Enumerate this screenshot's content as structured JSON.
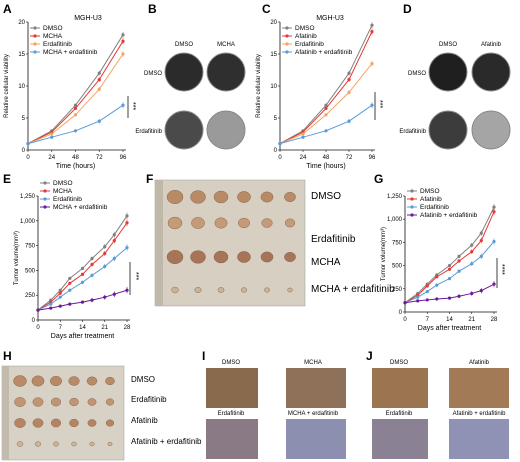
{
  "panels": {
    "A": {
      "letter": "A",
      "title": "MGH-U3",
      "xlabel": "Time (hours)",
      "ylabel": "Relative cellular viability",
      "sig": "***"
    },
    "B": {
      "letter": "B",
      "cols": [
        "DMSO",
        "MCHA"
      ],
      "rows": [
        "DMSO",
        "Erdafitinib"
      ]
    },
    "C": {
      "letter": "C",
      "title": "MGH-U3",
      "xlabel": "Time (hours)",
      "ylabel": "Relative cellular viability",
      "sig": "***"
    },
    "D": {
      "letter": "D",
      "cols": [
        "DMSO",
        "Afatinib"
      ],
      "rows": [
        "DMSO",
        "Erdafitinib"
      ]
    },
    "E": {
      "letter": "E",
      "xlabel": "Days after treatment",
      "ylabel": "Tumor volume(mm³)",
      "sig": "***"
    },
    "F": {
      "letter": "F",
      "rows": [
        "DMSO",
        "Erdafitinib",
        "MCHA",
        "MCHA + erdafitinib"
      ]
    },
    "G": {
      "letter": "G",
      "xlabel": "Days after treatment",
      "ylabel": "Tumor volume(mm³)",
      "sig": "****"
    },
    "H": {
      "letter": "H",
      "rows": [
        "DMSO",
        "Erdafitinib",
        "Afatinib",
        "Afatinib + erdafitinib"
      ]
    },
    "I": {
      "letter": "I",
      "labels": [
        "DMSO",
        "MCHA",
        "Erdafitinib",
        "MCHA + erdafitinib"
      ]
    },
    "J": {
      "letter": "J",
      "labels": [
        "DMSO",
        "Afatinib",
        "Erdafitinib",
        "Afatinib + erdafitinib"
      ]
    }
  },
  "colors": {
    "gray": "#808080",
    "red": "#e53935",
    "orange": "#f4a460",
    "blue": "#5b9bd5",
    "purple": "#6a1b9a"
  },
  "chart_data": [
    {
      "id": "A",
      "type": "line",
      "title": "MGH-U3",
      "xlabel": "Time (hours)",
      "ylabel": "Relative cellular viability",
      "x": [
        0,
        24,
        48,
        72,
        96
      ],
      "xlim": [
        0,
        96
      ],
      "ylim": [
        0,
        20
      ],
      "xticks": [
        "0",
        "24",
        "48",
        "72",
        "96"
      ],
      "yticks": [
        "0",
        "5",
        "10",
        "15",
        "20"
      ],
      "legend_position": "top-left",
      "series": [
        {
          "name": "DMSO",
          "color": "#808080",
          "values": [
            1,
            3,
            7,
            12,
            18
          ]
        },
        {
          "name": "MCHA",
          "color": "#e53935",
          "values": [
            1,
            2.8,
            6.5,
            11,
            17
          ]
        },
        {
          "name": "Erdafitinib",
          "color": "#f4a460",
          "values": [
            1,
            2.5,
            5.5,
            9.5,
            15
          ]
        },
        {
          "name": "MCHA + erdafitinib",
          "color": "#5b9bd5",
          "values": [
            1,
            2,
            3,
            4.5,
            7
          ]
        }
      ]
    },
    {
      "id": "C",
      "type": "line",
      "title": "MGH-U3",
      "xlabel": "Time (hours)",
      "ylabel": "Relative cellular viability",
      "x": [
        0,
        24,
        48,
        72,
        96
      ],
      "xlim": [
        0,
        96
      ],
      "ylim": [
        0,
        20
      ],
      "xticks": [
        "0",
        "24",
        "48",
        "72",
        "96"
      ],
      "yticks": [
        "0",
        "5",
        "10",
        "15",
        "20"
      ],
      "legend_position": "top-left",
      "series": [
        {
          "name": "DMSO",
          "color": "#808080",
          "values": [
            1,
            3,
            7,
            12,
            19.5
          ]
        },
        {
          "name": "Afatinib",
          "color": "#e53935",
          "values": [
            1,
            2.8,
            6.5,
            11,
            18.5
          ]
        },
        {
          "name": "Erdafitinib",
          "color": "#f4a460",
          "values": [
            1,
            2.5,
            5.5,
            9,
            13.5
          ]
        },
        {
          "name": "Afatinib + erdafitinib",
          "color": "#5b9bd5",
          "values": [
            1,
            2,
            3,
            4.5,
            7
          ]
        }
      ]
    },
    {
      "id": "E",
      "type": "line",
      "xlabel": "Days after treatment",
      "ylabel": "Tumor volume(mm³)",
      "x": [
        0,
        4,
        7,
        10,
        14,
        17,
        21,
        24,
        28
      ],
      "xlim": [
        0,
        28
      ],
      "ylim": [
        0,
        1250
      ],
      "xticks": [
        "0",
        "7",
        "14",
        "21",
        "28"
      ],
      "yticks": [
        "0",
        "250",
        "500",
        "750",
        "1,000",
        "1,250"
      ],
      "legend_position": "top-left",
      "series": [
        {
          "name": "DMSO",
          "color": "#808080",
          "values": [
            100,
            200,
            300,
            420,
            520,
            620,
            740,
            860,
            1050
          ]
        },
        {
          "name": "MCHA",
          "color": "#e53935",
          "values": [
            100,
            180,
            270,
            370,
            460,
            560,
            670,
            800,
            980
          ]
        },
        {
          "name": "Erdafitinib",
          "color": "#5b9bd5",
          "values": [
            100,
            160,
            230,
            300,
            380,
            450,
            540,
            620,
            730
          ]
        },
        {
          "name": "MCHA + erdafitinib",
          "color": "#6a1b9a",
          "values": [
            100,
            120,
            140,
            160,
            180,
            200,
            230,
            260,
            300
          ]
        }
      ]
    },
    {
      "id": "G",
      "type": "line",
      "xlabel": "Days after treatment",
      "ylabel": "Tumor volume(mm³)",
      "x": [
        0,
        4,
        7,
        10,
        14,
        17,
        21,
        24,
        28
      ],
      "xlim": [
        0,
        28
      ],
      "ylim": [
        0,
        1250
      ],
      "xticks": [
        "0",
        "7",
        "14",
        "21",
        "28"
      ],
      "yticks": [
        "0",
        "250",
        "500",
        "750",
        "1,000",
        "1,250"
      ],
      "legend_position": "top-left",
      "series": [
        {
          "name": "DMSO",
          "color": "#808080",
          "values": [
            100,
            200,
            300,
            400,
            500,
            600,
            720,
            850,
            1130
          ]
        },
        {
          "name": "Afatinib",
          "color": "#e53935",
          "values": [
            100,
            180,
            280,
            380,
            460,
            550,
            650,
            770,
            1080
          ]
        },
        {
          "name": "Erdafitinib",
          "color": "#5b9bd5",
          "values": [
            100,
            160,
            220,
            290,
            360,
            440,
            520,
            600,
            760
          ]
        },
        {
          "name": "Afatinib + erdafitinib",
          "color": "#6a1b9a",
          "values": [
            100,
            120,
            130,
            140,
            150,
            170,
            200,
            230,
            300
          ]
        }
      ]
    }
  ]
}
